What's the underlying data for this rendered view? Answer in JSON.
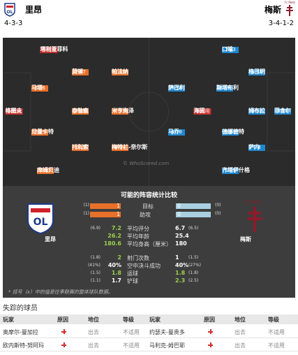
{
  "header": {
    "home": {
      "name": "里昂",
      "formation": "4-3-3"
    },
    "away": {
      "name": "梅斯",
      "formation": "3-4-1-2",
      "badge_text": "Fc Metz"
    }
  },
  "pitch": {
    "watermark": "© WhoScored.com",
    "home": [
      {
        "name": "塔利亚菲科",
        "rating": "不适用"
      },
      {
        "name": "马塔",
        "rating": "7.76"
      },
      {
        "name": "莫顿",
        "rating": "7.47"
      },
      {
        "name": "帕法纳",
        "rating": "7.11"
      },
      {
        "name": "格图夫",
        "rating": "不适用"
      },
      {
        "name": "泰勒塞",
        "rating": "7.45"
      },
      {
        "name": "米亨海泽",
        "rating": "7.25"
      },
      {
        "name": "尼曼卡特",
        "rating": "7.25"
      },
      {
        "name": "托利索",
        "rating": "7.15"
      },
      {
        "name": "梅特兰-奈尔斯",
        "rating": "6.94"
      },
      {
        "name": "库姆贝迪",
        "rating": "6.87"
      }
    ],
    "away": [
      {
        "name": "口喻",
        "rating": "7.13"
      },
      {
        "name": "格巴明",
        "rating": "6.41"
      },
      {
        "name": "萨巴利",
        "rating": "6.18"
      },
      {
        "name": "斯塔布利",
        "rating": "6.49"
      },
      {
        "name": "姆布拉",
        "rating": "6.53"
      },
      {
        "name": "菲舍尔",
        "rating": "6.28"
      },
      {
        "name": "海因",
        "rating": "不适用"
      },
      {
        "name": "马乔",
        "rating": "6.18"
      },
      {
        "name": "德娜德特",
        "rating": "6.83"
      },
      {
        "name": "萨内",
        "rating": "7.8"
      },
      {
        "name": "齐塔伊什格",
        "rating": "6.89"
      }
    ]
  },
  "comparison": {
    "title": "可能的阵容统计比较",
    "home_name": "里昂",
    "away_name": "梅斯",
    "badge_text": "Fc Metz",
    "bars": [
      {
        "home_season": "(1)",
        "home": "1",
        "label": "目标",
        "away": "0",
        "away_season": "(0)"
      },
      {
        "home_season": "(1)",
        "home": "1",
        "label": "助攻",
        "away": "0",
        "away_season": "(0)"
      }
    ],
    "rows": [
      {
        "home_season": "(6.9)",
        "home": "7.2",
        "label": "平均评分",
        "away": "6.7",
        "away_season": "(6.5)"
      },
      {
        "home": "26.2",
        "label": "平均年龄",
        "away": "25.4"
      },
      {
        "home": "180.6",
        "label": "平均身高（厘米）",
        "away": "180"
      },
      {
        "home_season": "(1.8)",
        "home": "2",
        "label": "射门次数",
        "away": "1",
        "away_season": "(1.5)"
      },
      {
        "home_season": "(41%)",
        "home": "40%",
        "label": "空中决斗成功",
        "away": "40%",
        "away_season": "(27%)"
      },
      {
        "home_season": "(1.5)",
        "home": "1.8",
        "label": "运球",
        "away": "1.8",
        "away_season": "(1.8)"
      },
      {
        "home_season": "(1.1)",
        "home": "1.7",
        "label": "铲球",
        "away": "2.3",
        "away_season": "(2.5)"
      }
    ],
    "note": "* 括号（x）中的值是往季联赛的整体球队数据。"
  },
  "missing": {
    "title": "失踪的球员",
    "columns": [
      "玩家",
      "原因",
      "地位",
      "等级",
      "玩家",
      "原因",
      "地位",
      "等级"
    ],
    "rows": [
      {
        "home": {
          "player": "奥摩尔-曼加拉",
          "status": "出去",
          "level": "不适用"
        },
        "away": {
          "player": "约瑟夫-曼贵多",
          "status": "出去",
          "level": "不适用"
        }
      },
      {
        "home": {
          "player": "欧内斯特-努阿玛",
          "status": "出去",
          "level": "不适用"
        },
        "away": {
          "player": "马利克-姆巴耶",
          "status": "出去",
          "level": "不适用"
        }
      }
    ]
  }
}
